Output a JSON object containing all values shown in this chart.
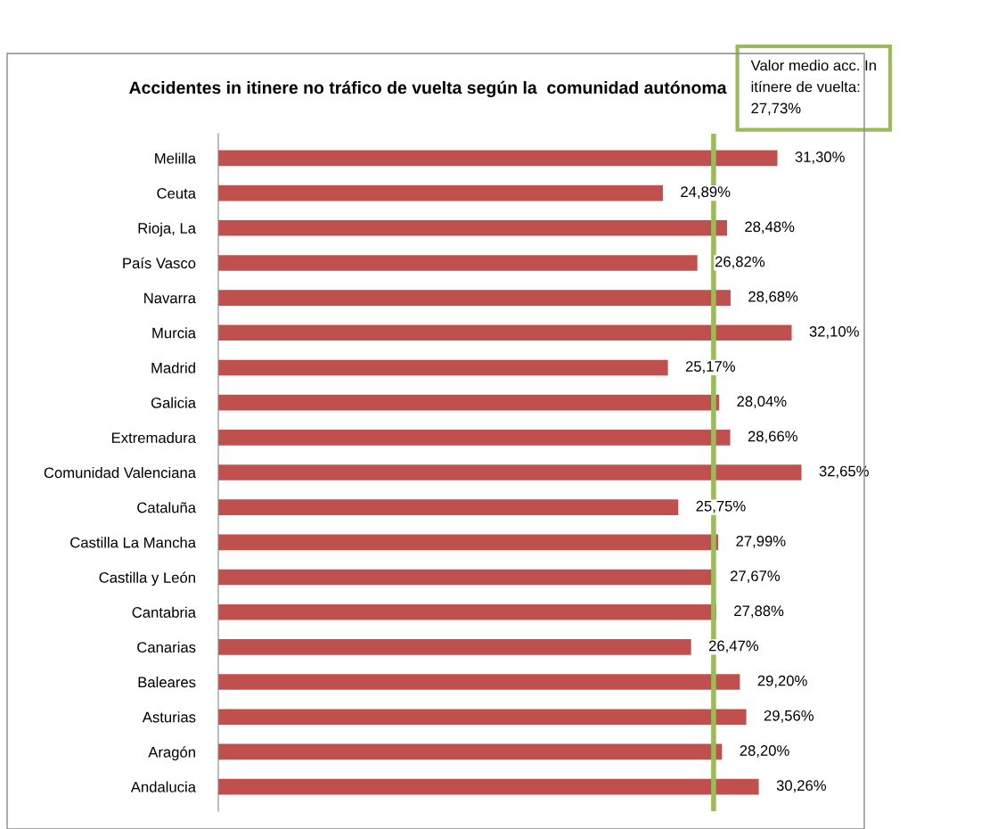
{
  "chart_data": {
    "type": "bar",
    "orientation": "horizontal",
    "title": "Accidentes in itinere no tráfico de vuelta según la  comunidad autónoma",
    "categories": [
      "Melilla",
      "Ceuta",
      "Rioja, La",
      "País Vasco",
      "Navarra",
      "Murcia",
      "Madrid",
      "Galicia",
      "Extremadura",
      "Comunidad Valenciana",
      "Cataluña",
      "Castilla La Mancha",
      "Castilla y León",
      "Cantabria",
      "Canarias",
      "Baleares",
      "Asturias",
      "Aragón",
      "Andalucia"
    ],
    "values": [
      31.3,
      24.89,
      28.48,
      26.82,
      28.68,
      32.1,
      25.17,
      28.04,
      28.66,
      32.65,
      25.75,
      27.99,
      27.67,
      27.88,
      26.47,
      29.2,
      29.56,
      28.2,
      30.26
    ],
    "value_labels": [
      "31,30%",
      "24,89%",
      "28,48%",
      "26,82%",
      "28,68%",
      "32,10%",
      "25,17%",
      "28,04%",
      "28,66%",
      "32,65%",
      "25,75%",
      "27,99%",
      "27,67%",
      "27,88%",
      "26,47%",
      "29,20%",
      "29,56%",
      "28,20%",
      "30,26%"
    ],
    "color": "#c0504d",
    "ref_lines": [
      {
        "axis": "x",
        "value": 27.73,
        "label": "Valor medio acc. In\nitínere de vuelta:\n27,73%",
        "color": "#9bbb59"
      }
    ],
    "grid": false,
    "legend": false
  }
}
